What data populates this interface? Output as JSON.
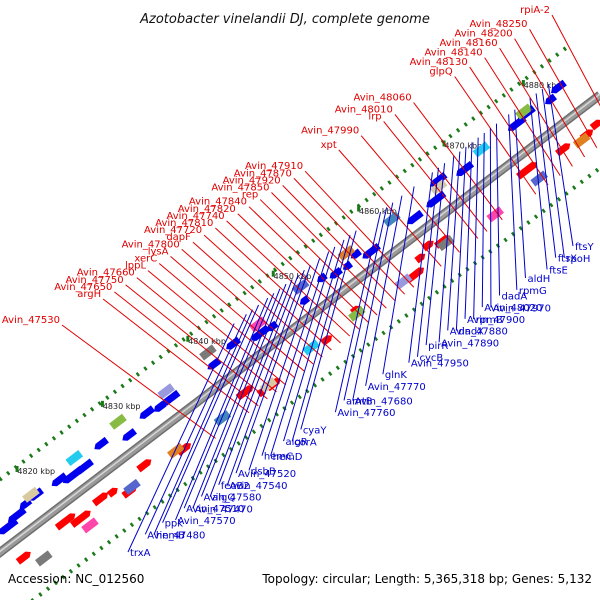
{
  "title": "Azotobacter vinelandii DJ, complete genome",
  "footer": {
    "accession": "Accession: NC_012560",
    "summary": "Topology: circular; Length: 5,365,318 bp; Genes: 5,132"
  },
  "colors": {
    "forward_label": "#e00000",
    "reverse_label": "#0000cc",
    "forward_arrow": "#ff0000",
    "reverse_arrow": "#0000ee",
    "backbone": "#9a9a9a",
    "tick": "#1a7a1a"
  },
  "kbp_marks": [
    {
      "label": "4810 kbp",
      "pos": 0.0
    },
    {
      "label": "4820 kbp",
      "pos": 0.1
    },
    {
      "label": "4830 kbp",
      "pos": 0.24
    },
    {
      "label": "4840 kbp",
      "pos": 0.38
    },
    {
      "label": "4850 kbp",
      "pos": 0.52
    },
    {
      "label": "4860 kbp",
      "pos": 0.66
    },
    {
      "label": "4870 kbp",
      "pos": 0.8
    },
    {
      "label": "4880 kbp",
      "pos": 0.93
    }
  ],
  "forward_labels": [
    {
      "name": "rpiA-2",
      "t": 0.985
    },
    {
      "name": "Avin_48250",
      "t": 0.955
    },
    {
      "name": "Avin_48200",
      "t": 0.935
    },
    {
      "name": "Avin_48160",
      "t": 0.915
    },
    {
      "name": "Avin_48140",
      "t": 0.895
    },
    {
      "name": "Avin_48130",
      "t": 0.875
    },
    {
      "name": "glpQ",
      "t": 0.855
    },
    {
      "name": "Avin_48060",
      "t": 0.8
    },
    {
      "name": "Avin_48010",
      "t": 0.775
    },
    {
      "name": "lrp",
      "t": 0.76
    },
    {
      "name": "Avin_47990",
      "t": 0.73
    },
    {
      "name": "xpt",
      "t": 0.7
    },
    {
      "name": "Avin_47910",
      "t": 0.655
    },
    {
      "name": "Avin_47870",
      "t": 0.64
    },
    {
      "name": "Avin_47920",
      "t": 0.625
    },
    {
      "name": "Avin_47850",
      "t": 0.61
    },
    {
      "name": "rep",
      "t": 0.595
    },
    {
      "name": "Avin_47840",
      "t": 0.58
    },
    {
      "name": "Avin_47820",
      "t": 0.565
    },
    {
      "name": "Avin_47740",
      "t": 0.55
    },
    {
      "name": "Avin_47810",
      "t": 0.535
    },
    {
      "name": "Avin_47720",
      "t": 0.52
    },
    {
      "name": "dapF",
      "t": 0.505
    },
    {
      "name": "Avin_47800",
      "t": 0.49
    },
    {
      "name": "lysA",
      "t": 0.475
    },
    {
      "name": "xerC",
      "t": 0.46
    },
    {
      "name": "lppL",
      "t": 0.445
    },
    {
      "name": "Avin_47660",
      "t": 0.43
    },
    {
      "name": "Avin_47750",
      "t": 0.415
    },
    {
      "name": "Avin_47650",
      "t": 0.4
    },
    {
      "name": "argH",
      "t": 0.385
    },
    {
      "name": "Avin_47530",
      "t": 0.33
    }
  ],
  "reverse_labels": [
    {
      "name": "ftsY",
      "t": 0.955
    },
    {
      "name": "rpoH",
      "t": 0.945
    },
    {
      "name": "ftsX",
      "t": 0.935
    },
    {
      "name": "ftsE",
      "t": 0.925
    },
    {
      "name": "aldH",
      "t": 0.9
    },
    {
      "name": "rpmG",
      "t": 0.89
    },
    {
      "name": "dadA",
      "t": 0.87
    },
    {
      "name": "Avin_47970",
      "t": 0.86
    },
    {
      "name": "Avin_48020",
      "t": 0.85
    },
    {
      "name": "rpmB",
      "t": 0.84
    },
    {
      "name": "Avin_47900",
      "t": 0.83
    },
    {
      "name": "dadX",
      "t": 0.82
    },
    {
      "name": "Avin_47880",
      "t": 0.81
    },
    {
      "name": "Avin_47890",
      "t": 0.8
    },
    {
      "name": "pirR",
      "t": 0.785
    },
    {
      "name": "cycB",
      "t": 0.775
    },
    {
      "name": "glnK",
      "t": 0.735
    },
    {
      "name": "Avin_47950",
      "t": 0.765
    },
    {
      "name": "Avin_47770",
      "t": 0.715
    },
    {
      "name": "Avin_47680",
      "t": 0.7
    },
    {
      "name": "amtB",
      "t": 0.69
    },
    {
      "name": "Avin_47760",
      "t": 0.68
    },
    {
      "name": "cyaY",
      "t": 0.64
    },
    {
      "name": "corA",
      "t": 0.63
    },
    {
      "name": "algR",
      "t": 0.62
    },
    {
      "name": "hemD",
      "t": 0.605
    },
    {
      "name": "hemC",
      "t": 0.595
    },
    {
      "name": "dsbB",
      "t": 0.58
    },
    {
      "name": "Avin_47520",
      "t": 0.565
    },
    {
      "name": "Avin_47540",
      "t": 0.555
    },
    {
      "name": "feoB2",
      "t": 0.545
    },
    {
      "name": "algQ",
      "t": 0.535
    },
    {
      "name": "Avin_47580",
      "t": 0.525
    },
    {
      "name": "Avin_47470",
      "t": 0.515
    },
    {
      "name": "Avin_47510",
      "t": 0.505
    },
    {
      "name": "Avin_47570",
      "t": 0.495
    },
    {
      "name": "ppk",
      "t": 0.48
    },
    {
      "name": "hemB",
      "t": 0.47
    },
    {
      "name": "Avin_47480",
      "t": 0.46
    },
    {
      "name": "trxA",
      "t": 0.44
    }
  ]
}
